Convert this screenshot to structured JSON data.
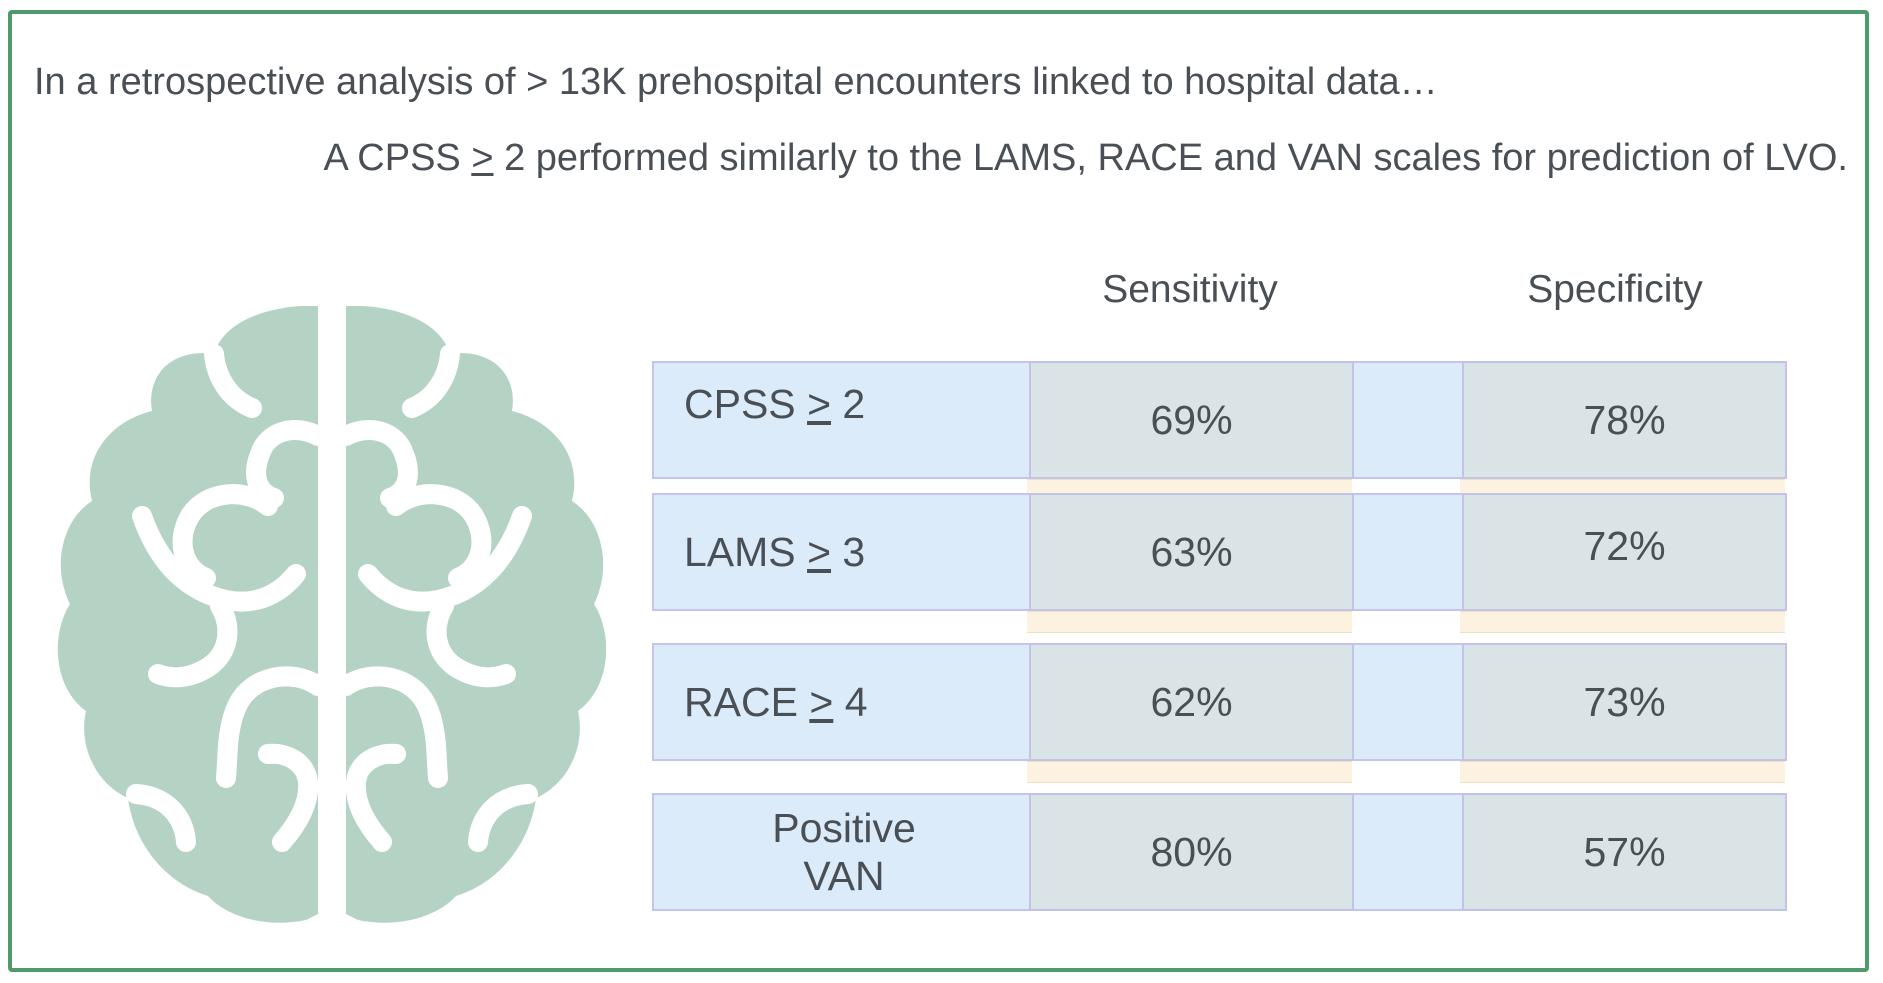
{
  "intro_text": "In a retrospective analysis of > 13K  prehospital encounters linked to hospital data…",
  "finding": {
    "prefix": "A CPSS ",
    "symbol": ">",
    "suffix": " 2 performed similarly to the LAMS, RACE and VAN scales for prediction of LVO."
  },
  "table": {
    "headers": {
      "sensitivity": "Sensitivity",
      "specificity": "Specificity"
    },
    "rows": [
      {
        "scale": "CPSS",
        "op": ">",
        "threshold": "2",
        "sensitivity": "69%",
        "specificity": "78%"
      },
      {
        "scale": "LAMS",
        "op": ">",
        "threshold": "3",
        "sensitivity": "63%",
        "specificity": "72%"
      },
      {
        "scale": "RACE",
        "op": ">",
        "threshold": "4",
        "sensitivity": "62%",
        "specificity": "73%"
      },
      {
        "scale_line1": "Positive",
        "scale_line2": "VAN",
        "sensitivity": "80%",
        "specificity": "57%"
      }
    ]
  },
  "colors": {
    "frame": "#4f9a6b",
    "brain": "#b5d3c4",
    "row_fill": "#dcebf9",
    "value_cell_fill": "#dae3e6",
    "stripe_fill": "#fdf1df",
    "text": "#4a4f55"
  },
  "icons": {
    "brain": "brain-icon"
  }
}
